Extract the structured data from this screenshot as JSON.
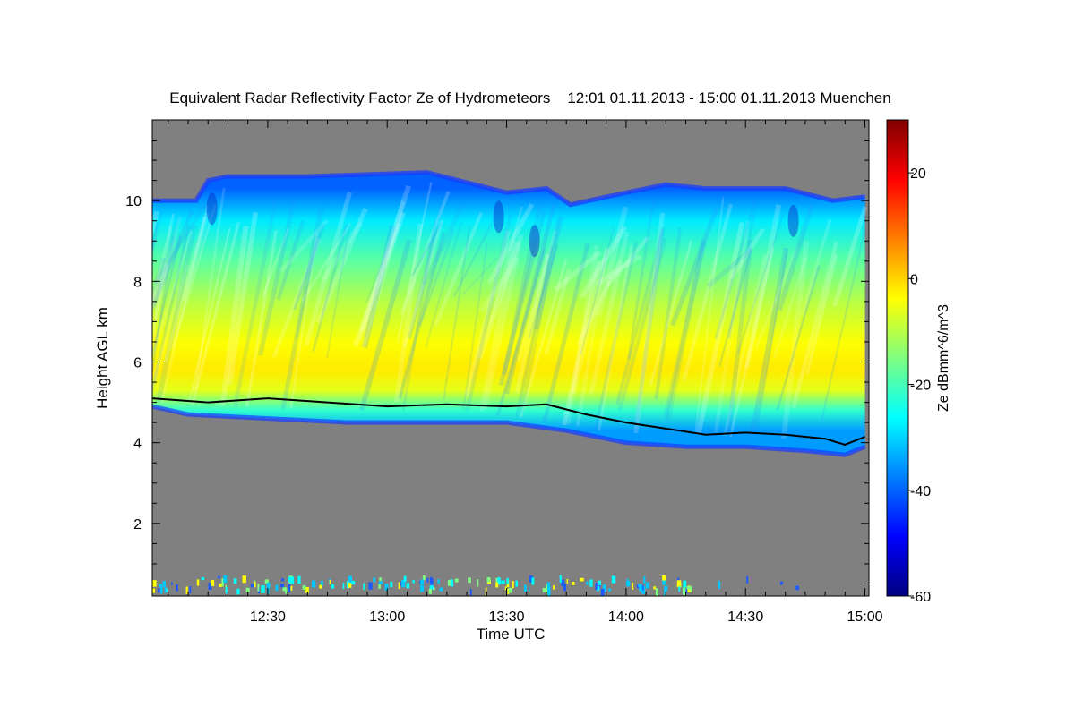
{
  "chart_data": {
    "type": "heatmap",
    "title": "Equivalent Radar Reflectivity Factor Ze of Hydrometeors    12:01 01.11.2013 - 15:00 01.11.2013 Muenchen",
    "xlabel": "Time UTC",
    "ylabel": "Height AGL km",
    "xlim": [
      "12:01",
      "15:01"
    ],
    "ylim": [
      0.2,
      12.0
    ],
    "x_ticks": [
      "12:30",
      "13:00",
      "13:30",
      "14:00",
      "14:30",
      "15:00"
    ],
    "y_ticks": [
      2,
      4,
      6,
      8,
      10
    ],
    "colorbar": {
      "label": "Ze dBmm^6/m^3",
      "range": [
        -60,
        30
      ],
      "ticks": [
        -60,
        -40,
        -20,
        0,
        20
      ]
    },
    "colors": {
      "background": "#808080",
      "colormap": [
        "#00007f",
        "#0000ff",
        "#007fff",
        "#00ffff",
        "#7fff7f",
        "#ffff00",
        "#ff7f00",
        "#ff0000",
        "#7f0000"
      ],
      "melting_layer_line": "#000000"
    },
    "cloud_top_km": {
      "time": [
        "12:01",
        "12:12",
        "12:15",
        "12:20",
        "12:40",
        "13:10",
        "13:30",
        "13:40",
        "13:46",
        "14:00",
        "14:10",
        "14:20",
        "14:40",
        "14:52",
        "15:00"
      ],
      "height": [
        10.0,
        10.0,
        10.5,
        10.6,
        10.6,
        10.7,
        10.2,
        10.3,
        9.9,
        10.2,
        10.4,
        10.3,
        10.3,
        10.0,
        10.1
      ]
    },
    "cloud_base_km": {
      "time": [
        "12:01",
        "12:10",
        "12:30",
        "12:50",
        "13:10",
        "13:30",
        "13:45",
        "14:00",
        "14:15",
        "14:30",
        "14:45",
        "14:55",
        "15:00"
      ],
      "height": [
        4.9,
        4.7,
        4.6,
        4.5,
        4.5,
        4.5,
        4.3,
        4.0,
        3.9,
        3.9,
        3.8,
        3.7,
        3.9
      ]
    },
    "melting_layer_km": {
      "time": [
        "12:01",
        "12:15",
        "12:30",
        "12:45",
        "13:00",
        "13:15",
        "13:30",
        "13:40",
        "13:50",
        "14:00",
        "14:10",
        "14:20",
        "14:30",
        "14:40",
        "14:50",
        "14:55",
        "15:00"
      ],
      "height": [
        5.1,
        5.0,
        5.1,
        5.0,
        4.9,
        4.95,
        4.9,
        4.95,
        4.7,
        4.5,
        4.35,
        4.2,
        4.25,
        4.2,
        4.1,
        3.95,
        4.15
      ]
    },
    "reflectivity_dBZ_profile": {
      "height": [
        10.3,
        9.5,
        8.5,
        7.5,
        6.5,
        5.8,
        5.3,
        4.8,
        4.3
      ],
      "value": [
        -40,
        -28,
        -18,
        -10,
        -4,
        -2,
        -6,
        -22,
        -35
      ]
    }
  }
}
